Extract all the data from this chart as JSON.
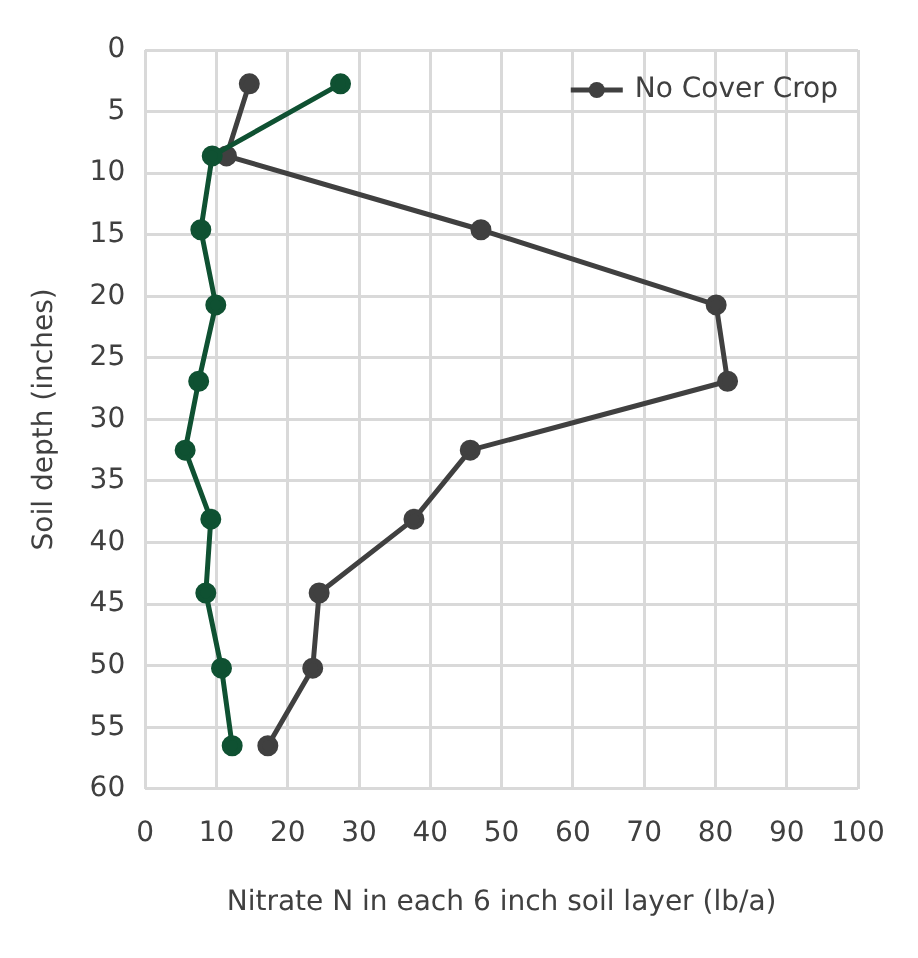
{
  "chart_data": {
    "type": "line",
    "xlabel": "Nitrate N in each 6 inch soil layer (lb/a)",
    "ylabel": "Soil depth (inches)",
    "xlim": [
      0,
      100
    ],
    "xticks": [
      0,
      10,
      20,
      30,
      40,
      50,
      60,
      70,
      80,
      90,
      100
    ],
    "ylim": [
      60,
      0
    ],
    "yticks": [
      0,
      5,
      10,
      15,
      20,
      25,
      30,
      35,
      40,
      45,
      50,
      55,
      60
    ],
    "grid": true,
    "legend": "top right",
    "marker": "circle",
    "series": [
      {
        "color": "#0f5132",
        "x": [
          27.4,
          9.4,
          7.8,
          9.9,
          7.5,
          5.6,
          9.2,
          8.5,
          10.7,
          12.2
        ],
        "values": [
          2.75,
          8.6,
          14.6,
          20.7,
          26.9,
          32.5,
          38.1,
          44.1,
          50.2,
          56.5
        ]
      },
      {
        "name": "No Cover Crop",
        "color": "#404040",
        "x": [
          14.6,
          11.4,
          47.1,
          80.1,
          81.7,
          45.6,
          37.7,
          24.4,
          23.5,
          17.2
        ],
        "values": [
          2.75,
          8.6,
          14.6,
          20.7,
          26.9,
          32.5,
          38.1,
          44.1,
          50.2,
          56.5
        ]
      }
    ]
  }
}
